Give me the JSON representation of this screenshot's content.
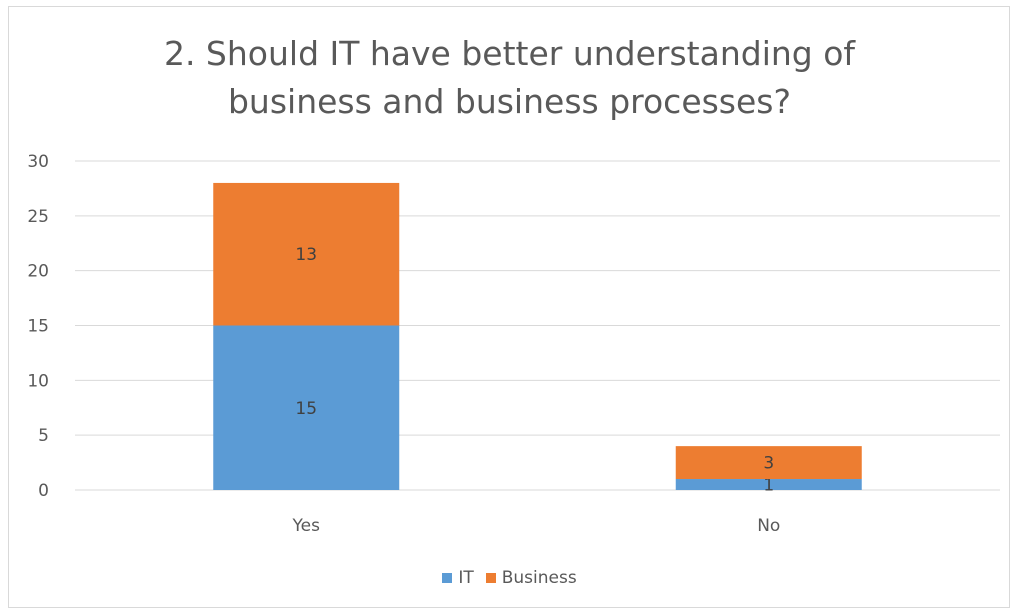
{
  "chart_data": {
    "type": "bar",
    "stacked": true,
    "title_lines": [
      "2. Should IT have better understanding of",
      "business and business processes?"
    ],
    "categories": [
      "Yes",
      "No"
    ],
    "series": [
      {
        "name": "IT",
        "values": [
          15,
          1
        ],
        "color": "#5b9bd5"
      },
      {
        "name": "Business",
        "values": [
          13,
          3
        ],
        "color": "#ed7d31"
      }
    ],
    "ylim": [
      0,
      30
    ],
    "yticks": [
      0,
      5,
      10,
      15,
      20,
      25,
      30
    ],
    "grid": true,
    "legend_position": "bottom",
    "data_labels": true
  }
}
